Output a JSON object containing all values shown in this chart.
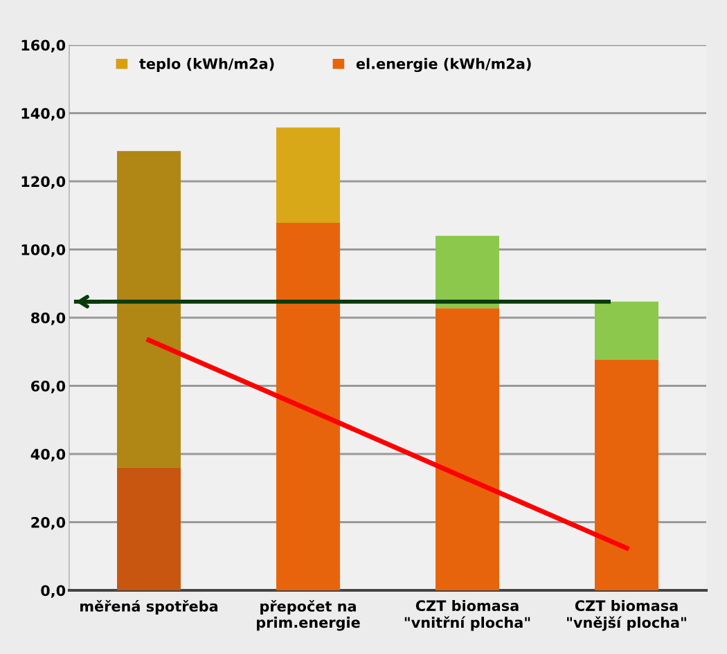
{
  "chart_data": {
    "type": "bar",
    "stacked": true,
    "categories": [
      "měřená spotřeba",
      "přepočet na\nprim.energie",
      "CZT biomasa\n\"vnitřní plocha\"",
      "CZT biomasa\n\"vnější plocha\""
    ],
    "series": [
      {
        "name": "el.energie (kWh/m2a)",
        "color": "#e8640c",
        "colors": [
          "#c85610",
          "#e8640c",
          "#e8640c",
          "#e8640c"
        ],
        "values": [
          36.1,
          107.8,
          82.8,
          67.6
        ]
      },
      {
        "name": "teplo (kWh/m2a)",
        "color": "#d8a010",
        "colors": [
          "#b08614",
          "#d8a818",
          "#8cc84c",
          "#8cc84c"
        ],
        "values": [
          92.8,
          28.0,
          21.2,
          17.1
        ]
      },
      {
        "type": "line",
        "color": "#ff0000",
        "values": [
          73.4,
          53.1,
          32.7,
          12.4
        ]
      }
    ],
    "ref_lines": [
      {
        "axis": "y",
        "value": 84.7,
        "color": "#0a3a0a"
      }
    ],
    "ylim": [
      0,
      160
    ],
    "yticks": [
      {
        "value": 0,
        "label": "0,0"
      },
      {
        "value": 20,
        "label": "20,0"
      },
      {
        "value": 40,
        "label": "40,0"
      },
      {
        "value": 60,
        "label": "60,0"
      },
      {
        "value": 80,
        "label": "80,0"
      },
      {
        "value": 100,
        "label": "100,0"
      },
      {
        "value": 120,
        "label": "120,0"
      },
      {
        "value": 140,
        "label": "140,0"
      },
      {
        "value": 160,
        "label": "160,0"
      }
    ],
    "grid": "y",
    "legend": "top"
  }
}
